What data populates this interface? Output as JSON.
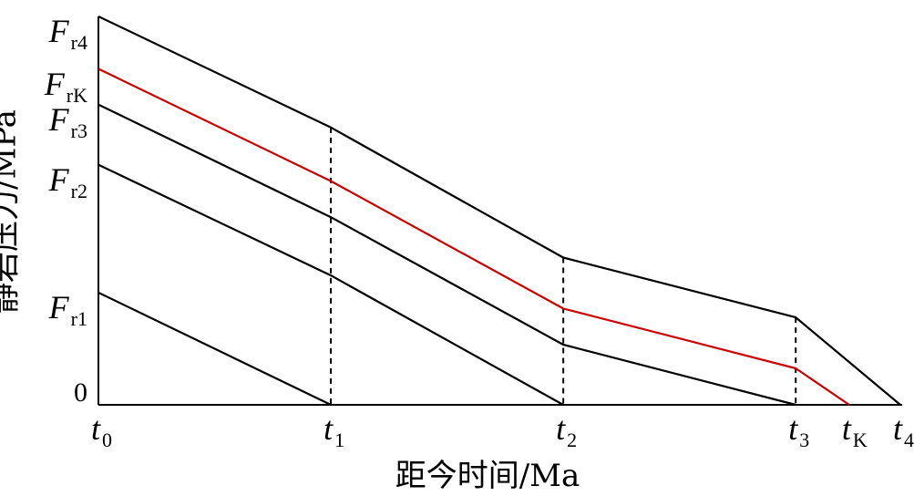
{
  "chart_data": {
    "type": "line",
    "xlabel": "距今时间/Ma",
    "ylabel": "静岩压力/MPa",
    "x_ticks": [
      {
        "base": "t",
        "sub": "0",
        "x": 0
      },
      {
        "base": "t",
        "sub": "1",
        "x": 1
      },
      {
        "base": "t",
        "sub": "2",
        "x": 2
      },
      {
        "base": "t",
        "sub": "3",
        "x": 3
      },
      {
        "base": "t",
        "sub": "K",
        "x": 3.23
      },
      {
        "base": "t",
        "sub": "4",
        "x": 3.45
      }
    ],
    "y_ticks": [
      {
        "base": "F",
        "sub": "r4",
        "y": 100
      },
      {
        "base": "F",
        "sub": "rK",
        "y": 86.5
      },
      {
        "base": "F",
        "sub": "r3",
        "y": 77.3
      },
      {
        "base": "F",
        "sub": "r2",
        "y": 61.8
      },
      {
        "base": "F",
        "sub": "r1",
        "y": 28.9
      },
      {
        "base": "",
        "sub": "",
        "label": "0",
        "y": 0
      }
    ],
    "xlim": [
      0,
      3.45
    ],
    "ylim": [
      0,
      100
    ],
    "series": [
      {
        "color": "#000000",
        "points": [
          [
            0,
            100
          ],
          [
            1,
            71.4
          ],
          [
            2,
            37.9
          ],
          [
            3,
            22.5
          ],
          [
            3.45,
            0
          ]
        ]
      },
      {
        "color": "#cc0000",
        "points": [
          [
            0,
            86.5
          ],
          [
            1,
            57.6
          ],
          [
            2,
            24.8
          ],
          [
            3,
            9.4
          ],
          [
            3.23,
            0
          ]
        ]
      },
      {
        "color": "#000000",
        "points": [
          [
            0,
            77.3
          ],
          [
            1,
            48.3
          ],
          [
            2,
            15.5
          ],
          [
            3,
            0
          ]
        ]
      },
      {
        "color": "#000000",
        "points": [
          [
            0,
            61.8
          ],
          [
            1,
            33.3
          ],
          [
            2,
            0
          ]
        ]
      },
      {
        "color": "#000000",
        "points": [
          [
            0,
            28.9
          ],
          [
            1,
            0
          ]
        ]
      }
    ],
    "guides": [
      1,
      2,
      3
    ]
  }
}
